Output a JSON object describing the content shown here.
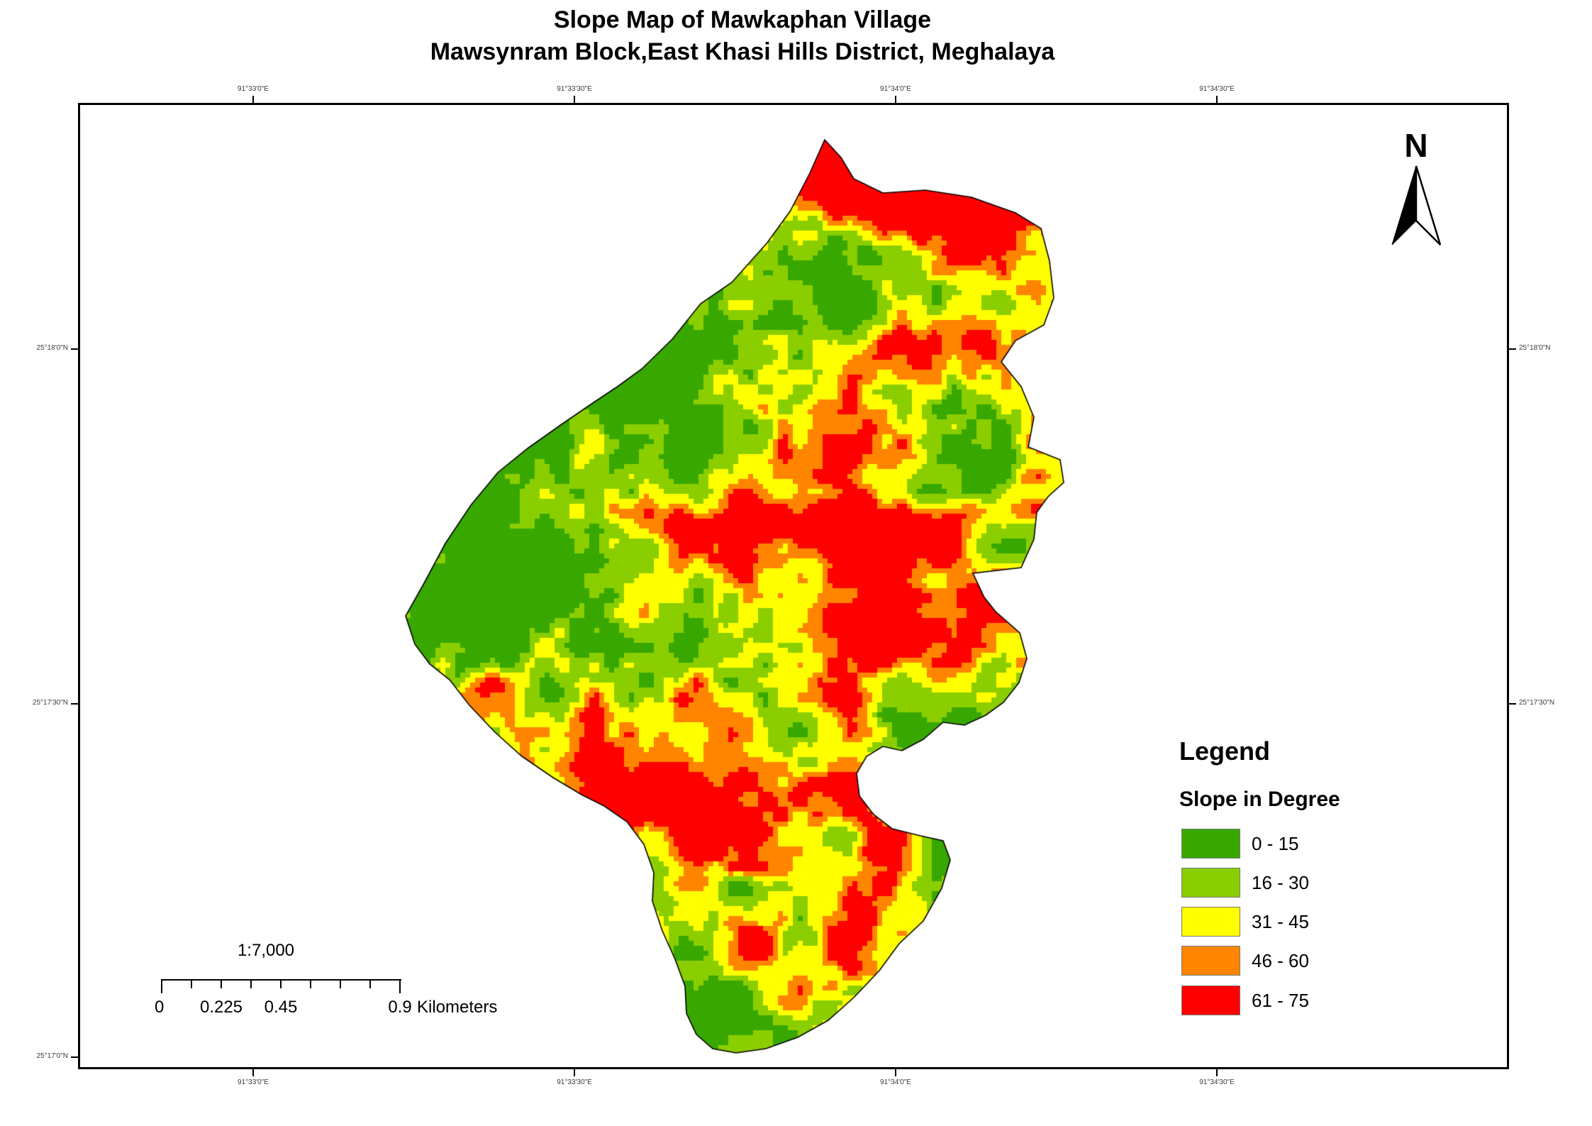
{
  "title": {
    "line1": "Slope Map of Mawkaphan Village",
    "line2": "Mawsynram Block,East Khasi Hills District, Meghalaya"
  },
  "north_arrow": {
    "label": "N"
  },
  "map": {
    "graticule": {
      "top": [
        "91°33'0\"E",
        "91°33'30\"E",
        "91°34'0\"E",
        "91°34'30\"E"
      ],
      "bottom": [
        "91°33'0\"E",
        "91°33'30\"E",
        "91°34'0\"E",
        "91°34'30\"E"
      ],
      "left": [
        "25°18'0\"N",
        "25°17'30\"N",
        "25°17'0\"N"
      ],
      "right": [
        "25°18'0\"N",
        "25°17'30\"N"
      ]
    }
  },
  "legend": {
    "heading": "Legend",
    "subheading": "Slope in Degree",
    "items": [
      {
        "label": "0 - 15",
        "color": "#38A800"
      },
      {
        "label": "16 - 30",
        "color": "#8BCE00"
      },
      {
        "label": "31 - 45",
        "color": "#FFFF00"
      },
      {
        "label": "46 - 60",
        "color": "#FF8500"
      },
      {
        "label": "61 - 75",
        "color": "#FE0000"
      }
    ]
  },
  "scalebar": {
    "scale_ratio": "1:7,000",
    "tick_labels": [
      "0",
      "0.225",
      "0.45",
      "0.9"
    ],
    "unit": "Kilometers"
  }
}
